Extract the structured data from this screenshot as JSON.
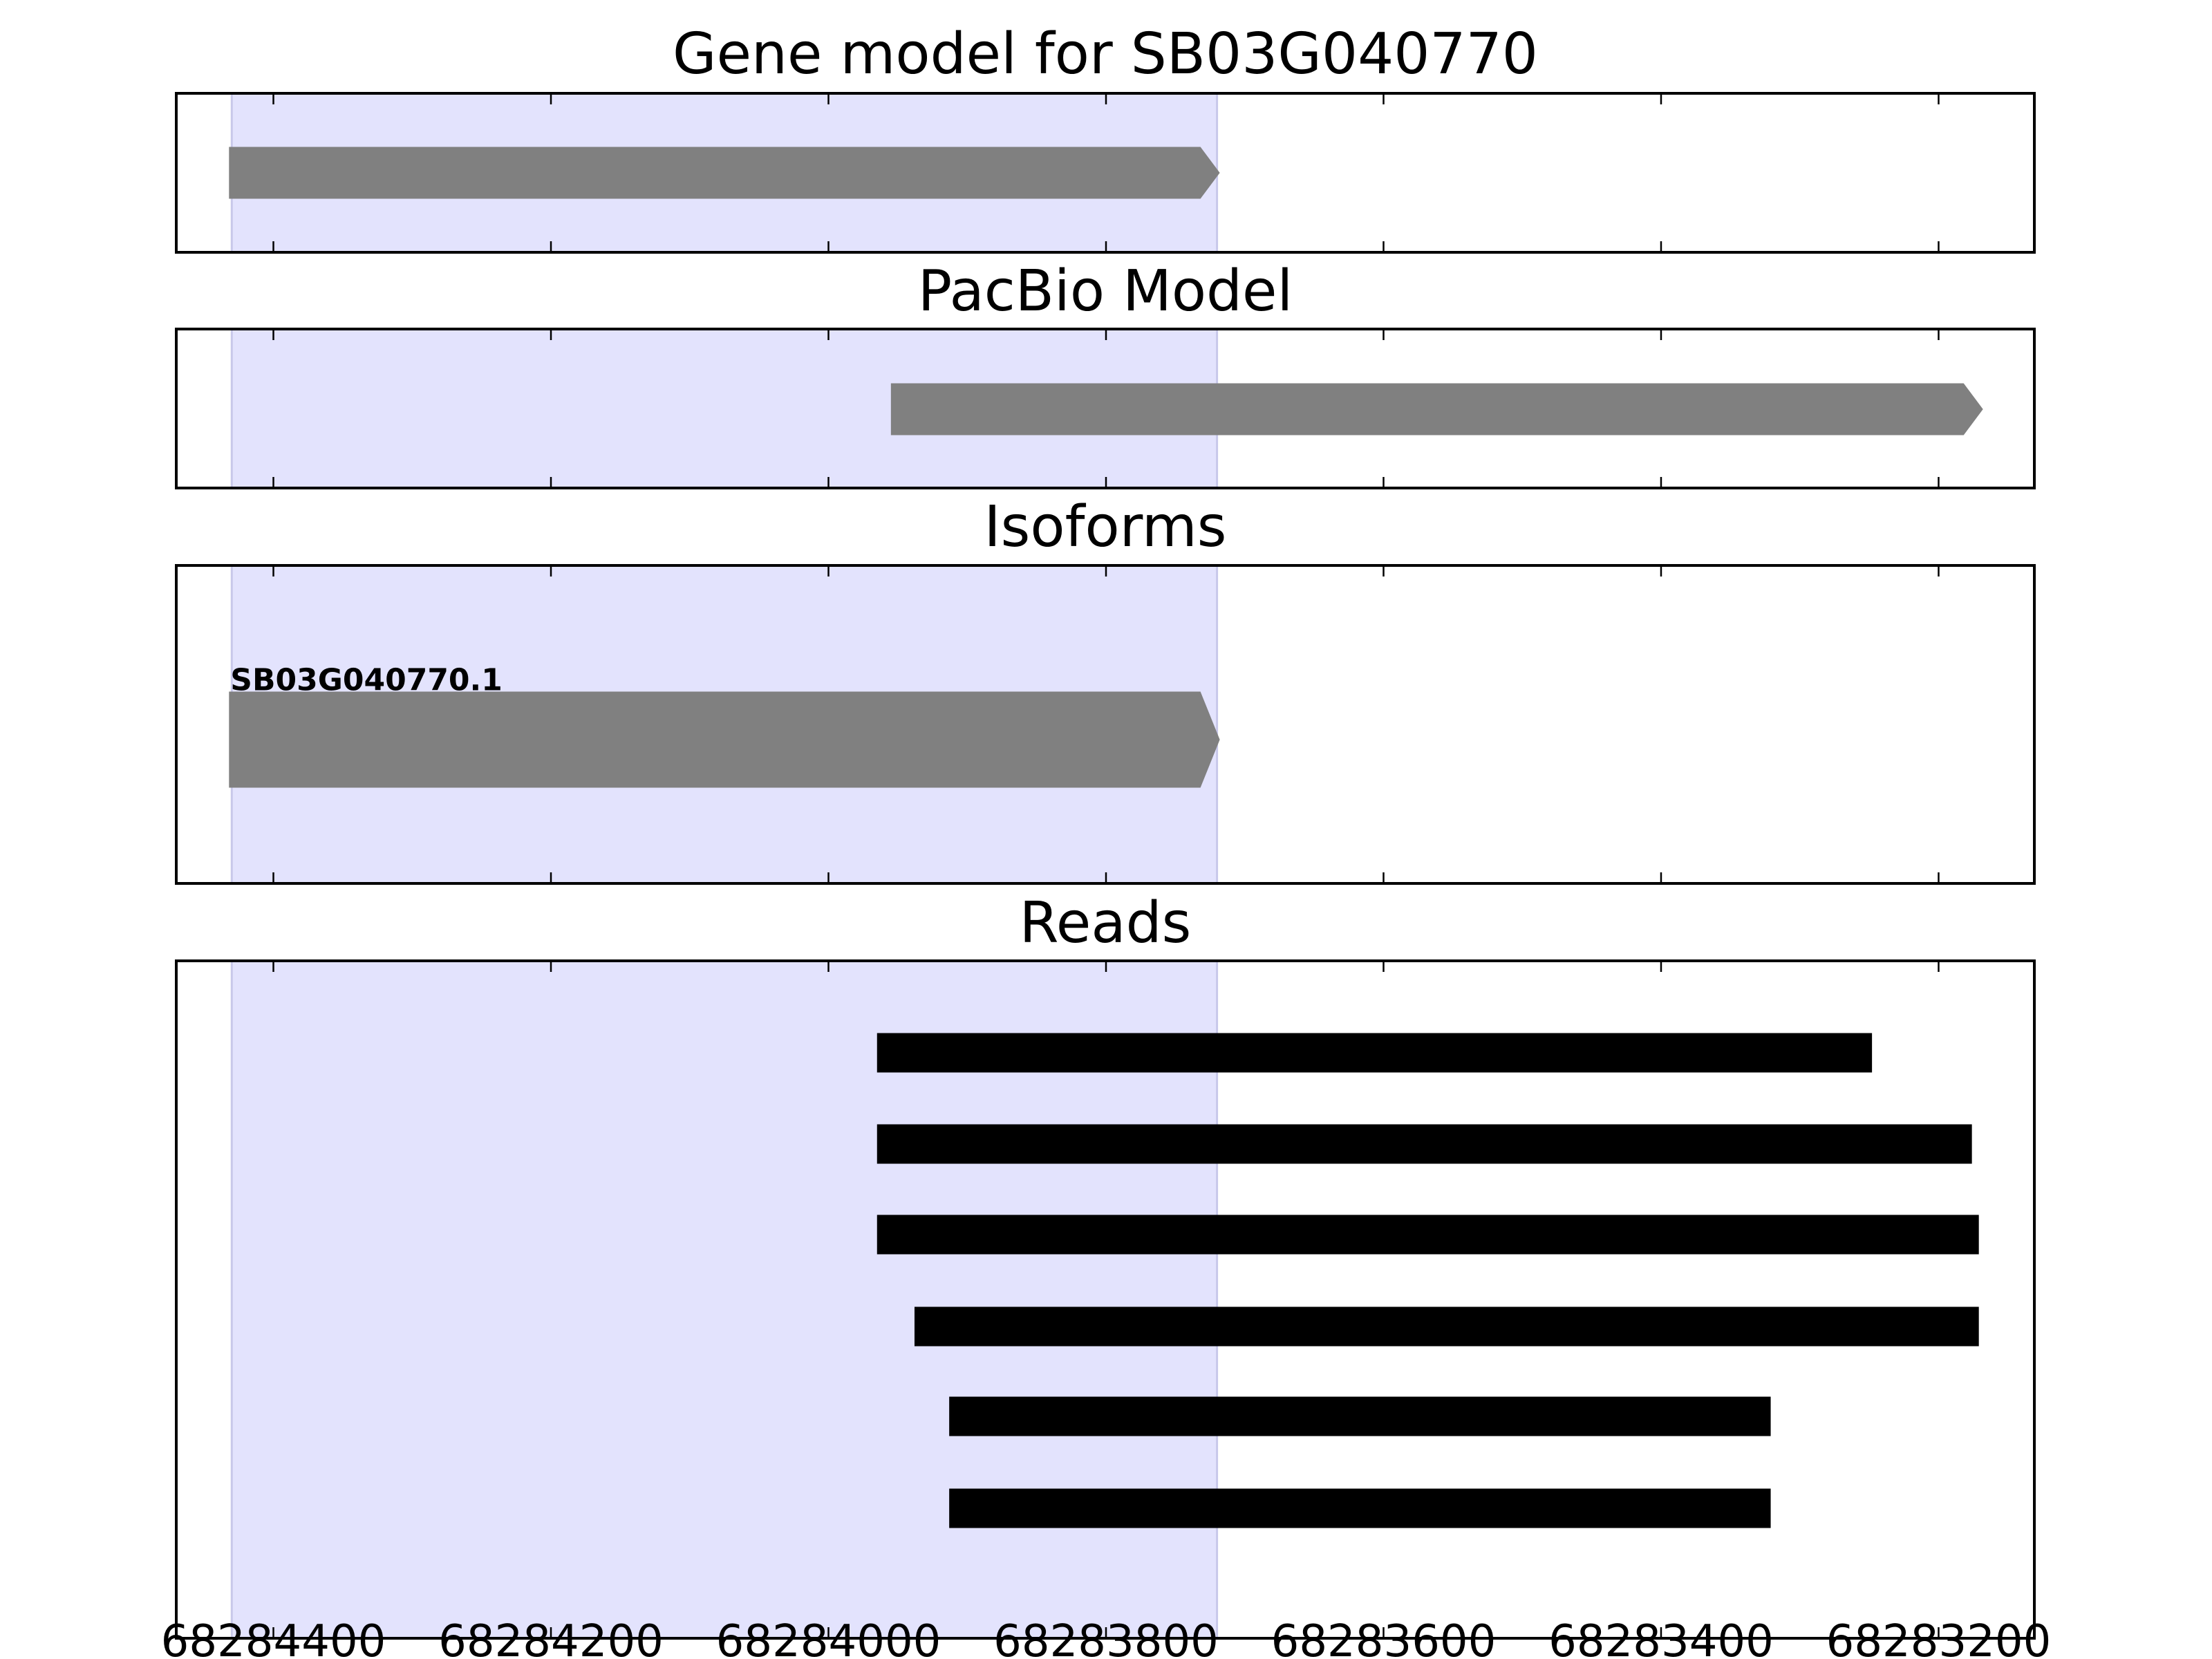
{
  "chart_data": [
    {
      "type": "bar",
      "title": "Gene model for SB03G040770",
      "xlim": [
        68284470,
        68283131
      ],
      "x_reversed": true,
      "highlight": {
        "start": 68284430,
        "end": 68283720,
        "color": "#e3e3fd"
      },
      "features": [
        {
          "start": 68284432,
          "end": 68283718,
          "strand": "+",
          "color": "#808080"
        }
      ]
    },
    {
      "type": "bar",
      "title": "PacBio Model",
      "xlim": [
        68284470,
        68283131
      ],
      "highlight": {
        "start": 68284430,
        "end": 68283720,
        "color": "#e3e3fd"
      },
      "features": [
        {
          "start": 68283955,
          "end": 68283168,
          "strand": "+",
          "color": "#808080"
        }
      ]
    },
    {
      "type": "bar",
      "title": "Isoforms",
      "xlim": [
        68284470,
        68283131
      ],
      "highlight": {
        "start": 68284430,
        "end": 68283720,
        "color": "#e3e3fd"
      },
      "features": [
        {
          "label": "SB03G040770.1",
          "start": 68284432,
          "end": 68283718,
          "strand": "+",
          "color": "#808080"
        }
      ]
    },
    {
      "type": "bar",
      "title": "Reads",
      "xlim": [
        68284470,
        68283131
      ],
      "highlight": {
        "start": 68284430,
        "end": 68283720,
        "color": "#e3e3fd"
      },
      "features": [
        {
          "start": 68283965,
          "end": 68283248,
          "color": "#000000"
        },
        {
          "start": 68283965,
          "end": 68283176,
          "color": "#000000"
        },
        {
          "start": 68283965,
          "end": 68283171,
          "color": "#000000"
        },
        {
          "start": 68283938,
          "end": 68283171,
          "color": "#000000"
        },
        {
          "start": 68283913,
          "end": 68283321,
          "color": "#000000"
        },
        {
          "start": 68283913,
          "end": 68283321,
          "color": "#000000"
        }
      ],
      "xticks": [
        "68284400",
        "68284200",
        "68284000",
        "68283800",
        "68283600",
        "68283400",
        "68283200"
      ]
    }
  ]
}
